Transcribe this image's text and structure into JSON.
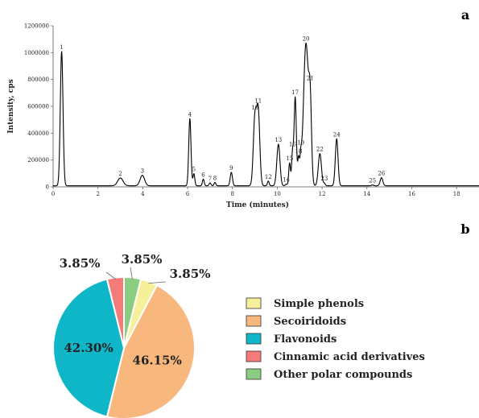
{
  "figure": {
    "panel_a_letter": "a",
    "panel_b_letter": "b"
  },
  "chart_data": [
    {
      "type": "line",
      "xlabel": "Time (minutes)",
      "ylabel": "Intensity, cps",
      "xlim": [
        0,
        19
      ],
      "ylim": [
        0,
        1200000
      ],
      "x_ticks": [
        0,
        2,
        4,
        6,
        8,
        10,
        12,
        14,
        16,
        18
      ],
      "y_ticks": [
        0,
        200000,
        400000,
        600000,
        800000,
        1000000,
        1200000
      ],
      "y_tick_labels": [
        "0",
        "200000",
        "400000",
        "600000",
        "800000",
        "1000000",
        "1200000"
      ],
      "grid": false,
      "line_color": "#000000",
      "baseline": 8000,
      "peaks": [
        {
          "label": "1",
          "rt": 0.38,
          "height": 1000000,
          "width": 0.06
        },
        {
          "label": "2",
          "rt": 3.0,
          "height": 58000,
          "width": 0.12
        },
        {
          "label": "3",
          "rt": 3.98,
          "height": 78000,
          "width": 0.1
        },
        {
          "label": "4",
          "rt": 6.1,
          "height": 500000,
          "width": 0.05
        },
        {
          "label": "5",
          "rt": 6.28,
          "height": 90000,
          "width": 0.04
        },
        {
          "label": "6",
          "rt": 6.7,
          "height": 50000,
          "width": 0.04
        },
        {
          "label": "7",
          "rt": 7.0,
          "height": 22000,
          "width": 0.04
        },
        {
          "label": "8",
          "rt": 7.22,
          "height": 25000,
          "width": 0.04
        },
        {
          "label": "9",
          "rt": 7.95,
          "height": 100000,
          "width": 0.05
        },
        {
          "label": "10",
          "rt": 9.0,
          "height": 495000,
          "width": 0.07
        },
        {
          "label": "11",
          "rt": 9.15,
          "height": 550000,
          "width": 0.07
        },
        {
          "label": "12",
          "rt": 9.6,
          "height": 35000,
          "width": 0.04
        },
        {
          "label": "13",
          "rt": 10.05,
          "height": 310000,
          "width": 0.07
        },
        {
          "label": "14",
          "rt": 10.4,
          "height": 12000,
          "width": 0.04
        },
        {
          "label": "15",
          "rt": 10.55,
          "height": 170000,
          "width": 0.04
        },
        {
          "label": "16",
          "rt": 10.68,
          "height": 240000,
          "width": 0.04
        },
        {
          "label": "17",
          "rt": 10.8,
          "height": 660000,
          "width": 0.05
        },
        {
          "label": "18",
          "rt": 10.95,
          "height": 200000,
          "width": 0.04
        },
        {
          "label": "19",
          "rt": 11.05,
          "height": 160000,
          "width": 0.04
        },
        {
          "label": "20",
          "rt": 11.28,
          "height": 1060000,
          "width": 0.11
        },
        {
          "label": "21",
          "rt": 11.47,
          "height": 530000,
          "width": 0.06
        },
        {
          "label": "22",
          "rt": 11.9,
          "height": 240000,
          "width": 0.07
        },
        {
          "label": "23",
          "rt": 12.1,
          "height": 18000,
          "width": 0.04
        },
        {
          "label": "24",
          "rt": 12.65,
          "height": 350000,
          "width": 0.06
        },
        {
          "label": "25",
          "rt": 14.25,
          "height": 6000,
          "width": 0.05
        },
        {
          "label": "26",
          "rt": 14.65,
          "height": 60000,
          "width": 0.06
        }
      ]
    },
    {
      "type": "pie",
      "legend_position": "right",
      "slices": [
        {
          "name": "Simple phenols",
          "value": 3.85,
          "label": "3.85%",
          "color": "#F7F09B"
        },
        {
          "name": "Secoiridoids",
          "value": 46.15,
          "label": "46.15%",
          "color": "#F8B87D"
        },
        {
          "name": "Flavonoids",
          "value": 42.3,
          "label": "42.30%",
          "color": "#0FB6C8"
        },
        {
          "name": "Cinnamic acid derivatives",
          "value": 3.85,
          "label": "3.85%",
          "color": "#F47B7A"
        },
        {
          "name": "Other polar compounds",
          "value": 3.85,
          "label": "3.85%",
          "color": "#8ACD82"
        }
      ],
      "slice_order_clockwise_from_top": [
        "Other polar compounds",
        "Simple phenols",
        "Secoiridoids",
        "Flavonoids",
        "Cinnamic acid derivatives"
      ],
      "outline_color": "#ffffff"
    }
  ]
}
